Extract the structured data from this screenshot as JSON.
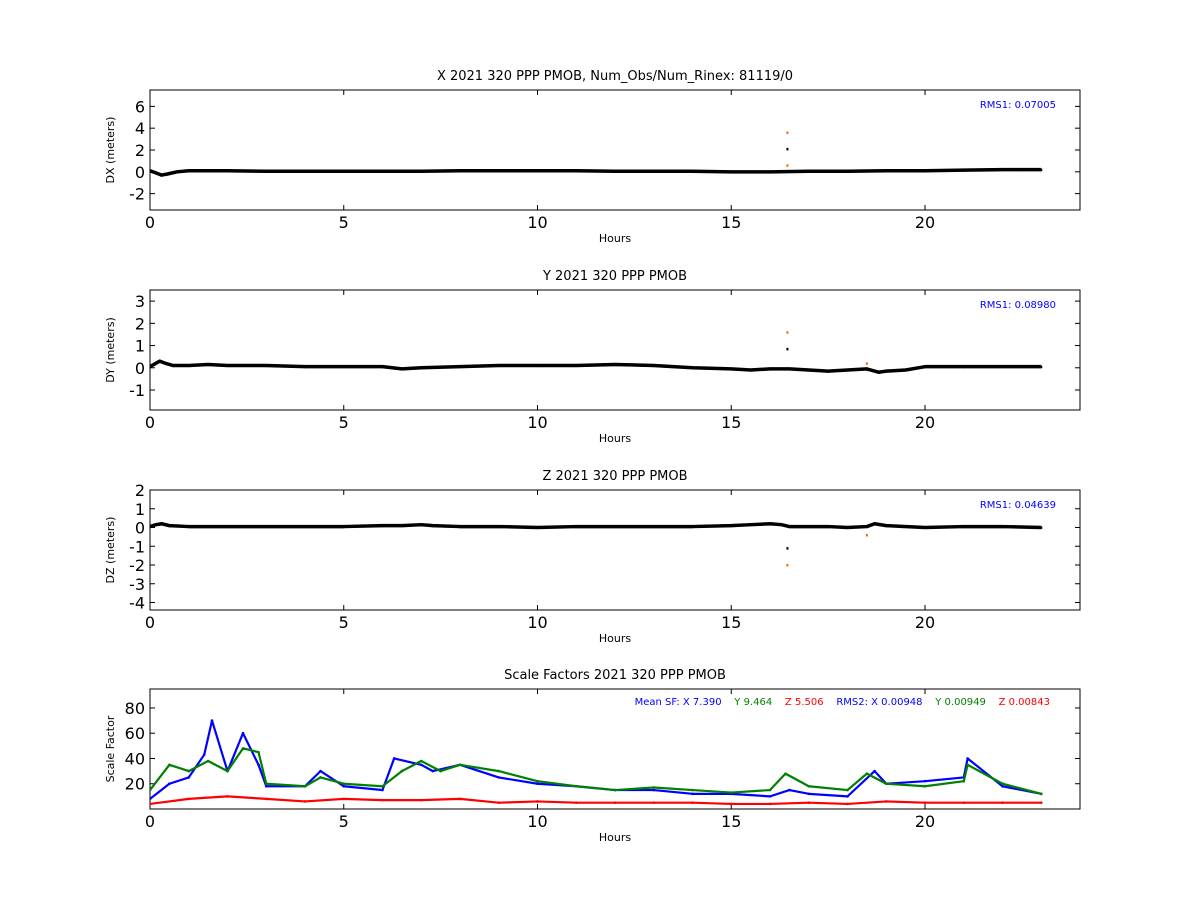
{
  "chart_data": [
    {
      "type": "scatter",
      "title": "X 2021 320 PPP  PMOB, Num_Obs/Num_Rinex: 81119/0",
      "xlabel": "Hours",
      "ylabel": "DX (meters)",
      "xlim": [
        0,
        24
      ],
      "ylim": [
        -3.5,
        7.5
      ],
      "xticks": [
        0,
        5,
        10,
        15,
        20
      ],
      "yticks": [
        -2,
        0,
        2,
        4,
        6
      ],
      "annotation": "RMS1:  0.07005",
      "annotation_color": "#0000ff",
      "series": [
        {
          "color": "#000000",
          "x": [
            0,
            0.15,
            0.3,
            0.45,
            0.7,
            1,
            2,
            3,
            4,
            5,
            6,
            7,
            8,
            9,
            10,
            11,
            12,
            13,
            14,
            15,
            16,
            17,
            18,
            19,
            20,
            21,
            22,
            22.5,
            23
          ],
          "y": [
            0.1,
            -0.1,
            -0.3,
            -0.2,
            0.0,
            0.1,
            0.1,
            0.05,
            0.05,
            0.05,
            0.05,
            0.05,
            0.1,
            0.1,
            0.1,
            0.1,
            0.05,
            0.05,
            0.05,
            0.0,
            0.0,
            0.05,
            0.05,
            0.1,
            0.1,
            0.15,
            0.2,
            0.2,
            0.2
          ]
        },
        {
          "color": "#ff6600",
          "x": [
            16.45,
            16.45
          ],
          "y": [
            3.6,
            0.6
          ]
        },
        {
          "color": "#000000",
          "x": [
            16.45
          ],
          "y": [
            2.1
          ]
        }
      ]
    },
    {
      "type": "scatter",
      "title": "Y 2021 320 PPP  PMOB",
      "xlabel": "Hours",
      "ylabel": "DY (meters)",
      "xlim": [
        0,
        24
      ],
      "ylim": [
        -1.9,
        3.5
      ],
      "xticks": [
        0,
        5,
        10,
        15,
        20
      ],
      "yticks": [
        -1,
        0,
        1,
        2,
        3
      ],
      "annotation": "RMS1:  0.08980",
      "annotation_color": "#0000ff",
      "series": [
        {
          "color": "#000000",
          "x": [
            0,
            0.1,
            0.25,
            0.4,
            0.6,
            1,
            1.5,
            2,
            3,
            4,
            5,
            6,
            6.5,
            7,
            8,
            9,
            10,
            11,
            12,
            13,
            14,
            15,
            15.5,
            16,
            16.5,
            17,
            17.5,
            18,
            18.5,
            18.8,
            19,
            19.5,
            20,
            21,
            22,
            23
          ],
          "y": [
            0.05,
            0.15,
            0.3,
            0.2,
            0.1,
            0.1,
            0.15,
            0.1,
            0.1,
            0.05,
            0.05,
            0.05,
            -0.05,
            0.0,
            0.05,
            0.1,
            0.1,
            0.1,
            0.15,
            0.1,
            0.0,
            -0.05,
            -0.1,
            -0.05,
            -0.05,
            -0.1,
            -0.15,
            -0.1,
            -0.05,
            -0.2,
            -0.15,
            -0.1,
            0.05,
            0.05,
            0.05,
            0.05
          ]
        },
        {
          "color": "#ff6600",
          "x": [
            16.45,
            18.5
          ],
          "y": [
            1.6,
            0.2
          ]
        },
        {
          "color": "#000000",
          "x": [
            16.45
          ],
          "y": [
            0.85
          ]
        }
      ]
    },
    {
      "type": "scatter",
      "title": "Z 2021 320 PPP  PMOB",
      "xlabel": "Hours",
      "ylabel": "DZ (meters)",
      "xlim": [
        0,
        24
      ],
      "ylim": [
        -4.4,
        2
      ],
      "xticks": [
        0,
        5,
        10,
        15,
        20
      ],
      "yticks": [
        -4,
        -3,
        -2,
        -1,
        0,
        1,
        2
      ],
      "annotation": "RMS1:  0.04639",
      "annotation_color": "#0000ff",
      "series": [
        {
          "color": "#000000",
          "x": [
            0,
            0.15,
            0.3,
            0.5,
            1,
            2,
            3,
            4,
            5,
            6,
            6.5,
            7,
            7.3,
            8,
            9,
            10,
            11,
            12,
            13,
            14,
            15,
            15.5,
            16,
            16.3,
            16.5,
            17,
            17.5,
            18,
            18.5,
            18.7,
            19,
            20,
            21,
            22,
            23
          ],
          "y": [
            0.05,
            0.15,
            0.2,
            0.1,
            0.05,
            0.05,
            0.05,
            0.05,
            0.05,
            0.1,
            0.1,
            0.15,
            0.1,
            0.05,
            0.05,
            0.0,
            0.05,
            0.05,
            0.05,
            0.05,
            0.1,
            0.15,
            0.2,
            0.15,
            0.05,
            0.05,
            0.05,
            0.0,
            0.05,
            0.2,
            0.1,
            0.0,
            0.05,
            0.05,
            0.0
          ]
        },
        {
          "color": "#ff6600",
          "x": [
            16.45,
            18.5
          ],
          "y": [
            -2.0,
            -0.4
          ]
        },
        {
          "color": "#000000",
          "x": [
            16.45
          ],
          "y": [
            -1.1
          ]
        }
      ]
    },
    {
      "type": "line",
      "title": "Scale Factors 2021 320 PPP  PMOB",
      "xlabel": "Hours",
      "ylabel": "Scale Factor",
      "xlim": [
        0,
        24
      ],
      "ylim": [
        0,
        95
      ],
      "xticks": [
        0,
        5,
        10,
        15,
        20
      ],
      "yticks": [
        20,
        40,
        60,
        80
      ],
      "annotation_parts": [
        {
          "text": "Mean SF: X   7.390",
          "color": "#0000ff"
        },
        {
          "text": "Y   9.464",
          "color": "#008000"
        },
        {
          "text": "Z   5.506",
          "color": "#ff0000"
        },
        {
          "text": "RMS2: X  0.00948",
          "color": "#0000ff"
        },
        {
          "text": "Y  0.00949",
          "color": "#008000"
        },
        {
          "text": "Z  0.00843",
          "color": "#ff0000"
        }
      ],
      "series": [
        {
          "color": "#0000ff",
          "x": [
            0,
            0.5,
            1,
            1.4,
            1.6,
            2,
            2.4,
            2.8,
            3,
            4,
            4.4,
            5,
            6,
            6.3,
            7,
            7.3,
            8,
            9,
            10,
            11,
            12,
            13,
            14,
            15,
            16,
            16.5,
            17,
            18,
            18.7,
            19,
            20,
            21,
            21.1,
            22,
            23
          ],
          "y": [
            8,
            20,
            25,
            43,
            70,
            30,
            60,
            35,
            18,
            18,
            30,
            18,
            15,
            40,
            35,
            30,
            35,
            25,
            20,
            18,
            15,
            15,
            12,
            12,
            10,
            15,
            12,
            10,
            30,
            20,
            22,
            25,
            40,
            18,
            12
          ]
        },
        {
          "color": "#008000",
          "x": [
            0,
            0.5,
            1,
            1.5,
            2,
            2.4,
            2.8,
            3,
            4,
            4.4,
            5,
            6,
            6.5,
            7,
            7.5,
            8,
            9,
            10,
            11,
            12,
            13,
            14,
            15,
            16,
            16.4,
            17,
            18,
            18.5,
            19,
            20,
            21,
            21.1,
            22,
            23
          ],
          "y": [
            15,
            35,
            30,
            38,
            30,
            48,
            45,
            20,
            18,
            25,
            20,
            18,
            30,
            38,
            30,
            35,
            30,
            22,
            18,
            15,
            17,
            15,
            13,
            15,
            28,
            18,
            15,
            28,
            20,
            18,
            22,
            35,
            20,
            12
          ]
        },
        {
          "color": "#ff0000",
          "x": [
            0,
            1,
            2,
            3,
            4,
            5,
            6,
            7,
            8,
            9,
            10,
            11,
            12,
            13,
            14,
            15,
            16,
            17,
            18,
            19,
            20,
            21,
            22,
            23
          ],
          "y": [
            4,
            8,
            10,
            8,
            6,
            8,
            7,
            7,
            8,
            5,
            6,
            5,
            5,
            5,
            5,
            4,
            4,
            5,
            4,
            6,
            5,
            5,
            5,
            5
          ]
        }
      ]
    }
  ]
}
